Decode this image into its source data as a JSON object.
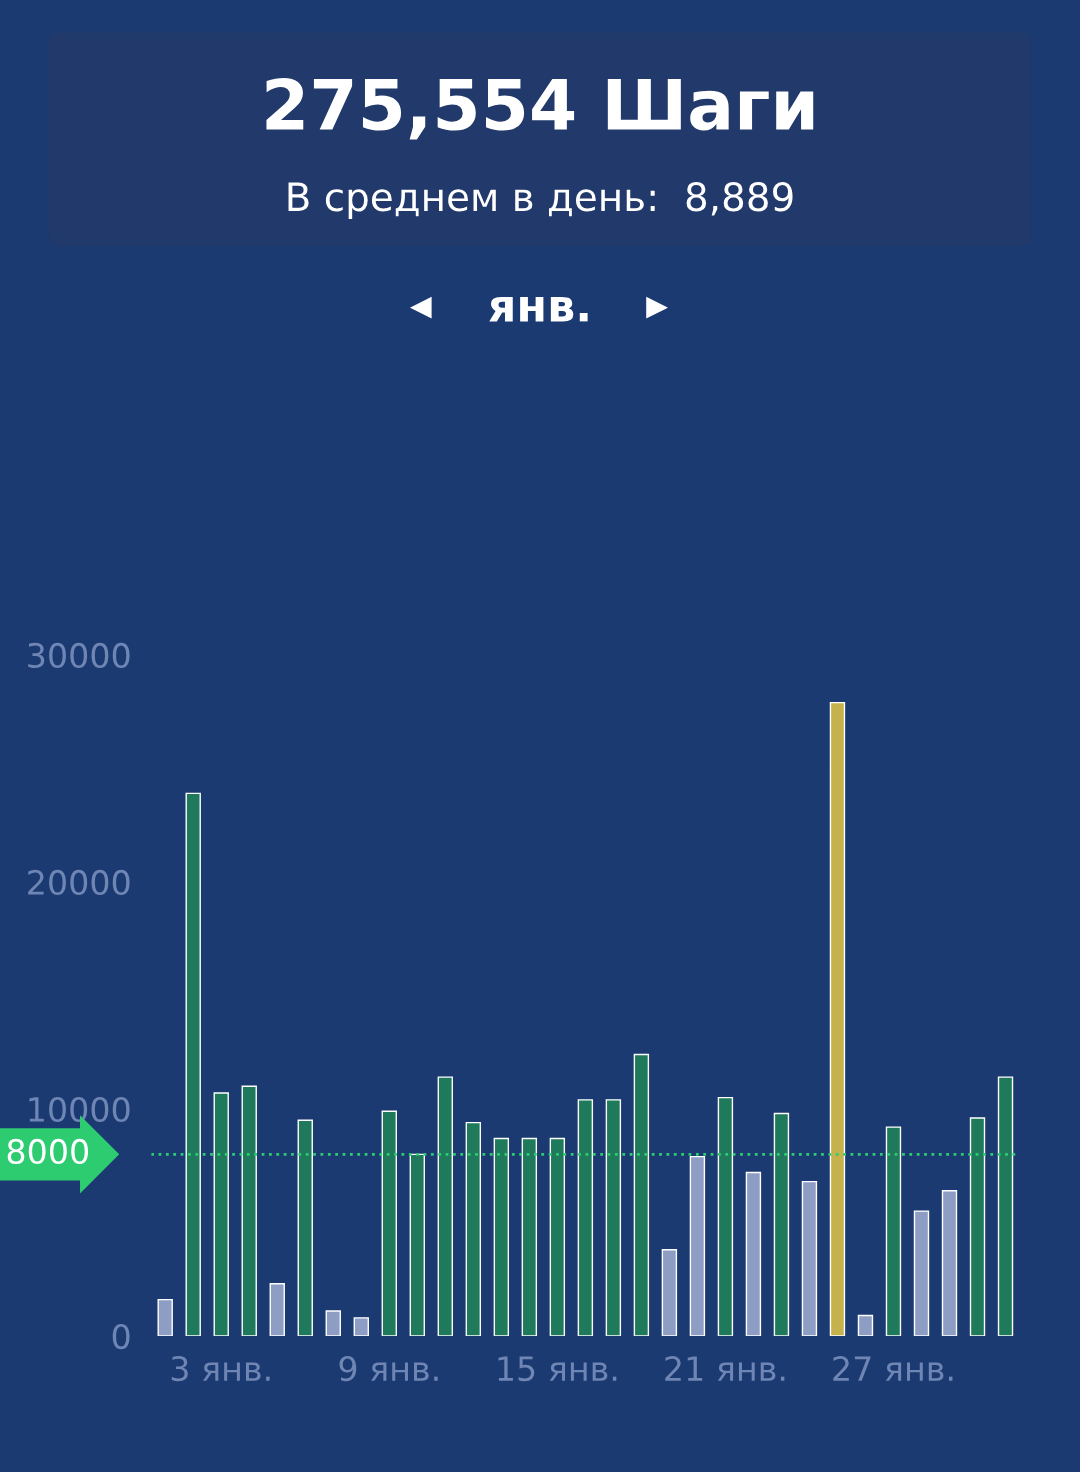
{
  "chart_data": {
    "type": "bar",
    "title": "275,554 Шаги",
    "subtitle": "В среднем в день:  8,889",
    "annotations": [
      "янв."
    ],
    "categories": [
      null,
      null,
      "3 янв.",
      null,
      null,
      null,
      null,
      null,
      "9 янв.",
      null,
      null,
      null,
      null,
      null,
      "15 янв.",
      null,
      null,
      null,
      null,
      null,
      "21 янв.",
      null,
      null,
      null,
      null,
      null,
      "27 янв.",
      null,
      null,
      null,
      null
    ],
    "values": [
      1600,
      23900,
      10700,
      11000,
      2300,
      9500,
      1100,
      800,
      9900,
      8000,
      11400,
      9400,
      8700,
      8700,
      8700,
      10400,
      10400,
      12400,
      3800,
      7900,
      10500,
      7200,
      9800,
      6800,
      27900,
      900,
      9200,
      5500,
      6400,
      9600,
      11400
    ],
    "colors": [
      "#8d9dc4",
      "#1f7a5c",
      "#1f7a5c",
      "#1f7a5c",
      "#8d9dc4",
      "#1f7a5c",
      "#8d9dc4",
      "#8d9dc4",
      "#1f7a5c",
      "#1f7a5c",
      "#1f7a5c",
      "#1f7a5c",
      "#1f7a5c",
      "#1f7a5c",
      "#1f7a5c",
      "#1f7a5c",
      "#1f7a5c",
      "#1f7a5c",
      "#8d9dc4",
      "#8d9dc4",
      "#1f7a5c",
      "#8d9dc4",
      "#1f7a5c",
      "#8d9dc4",
      "#c6b24c",
      "#8d9dc4",
      "#1f7a5c",
      "#8d9dc4",
      "#8d9dc4",
      "#1f7a5c",
      "#1f7a5c"
    ],
    "ylim": [
      0,
      30000
    ],
    "yticks": [
      0,
      10000,
      20000,
      30000
    ],
    "grid": false,
    "ref_lines": [
      {
        "axis": "y",
        "value": 8000,
        "label": "8000",
        "color": "#2ecc71",
        "line_style": "dotted"
      }
    ]
  }
}
